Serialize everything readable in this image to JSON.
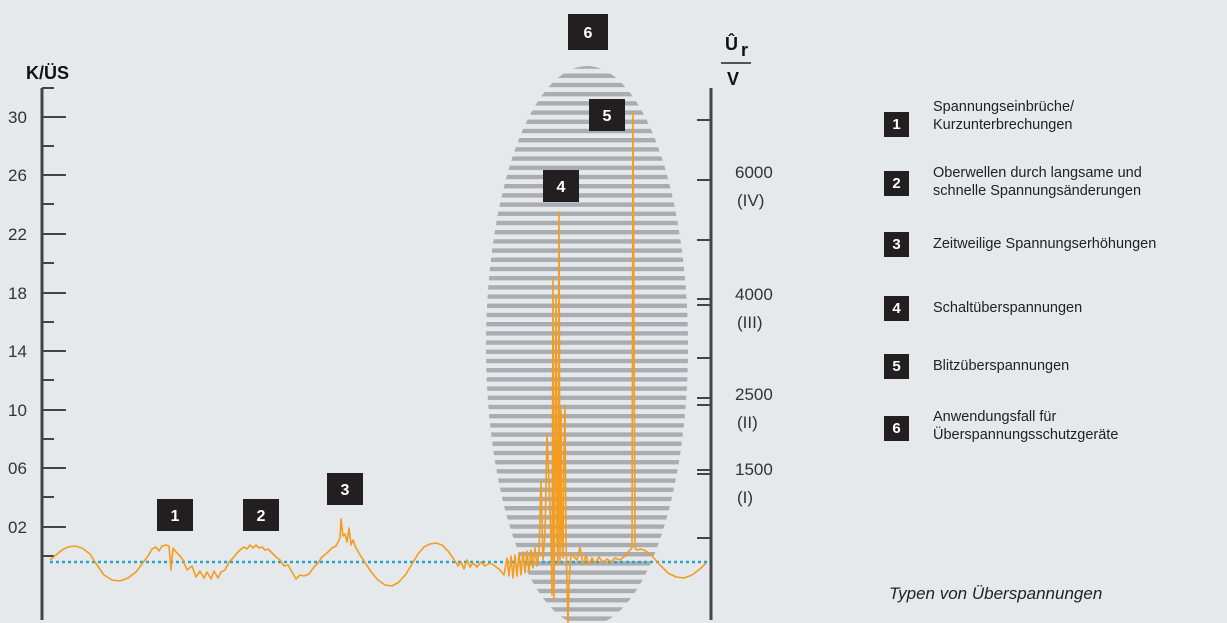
{
  "left_axis": {
    "title": "K/ÜS",
    "tick_labels": [
      "30",
      "26",
      "22",
      "18",
      "14",
      "10",
      "06",
      "02"
    ]
  },
  "right_axis": {
    "title_symbol": "Û",
    "title_subscript": "r",
    "title_unit": "V",
    "tick_labels": [
      {
        "value": "6000",
        "category": "(IV)"
      },
      {
        "value": "4000",
        "category": "(III)"
      },
      {
        "value": "2500",
        "category": "(II)"
      },
      {
        "value": "1500",
        "category": "(I)"
      }
    ]
  },
  "badges": [
    "1",
    "2",
    "3",
    "4",
    "5",
    "6"
  ],
  "legend": [
    {
      "num": "1",
      "text": "Spannungseinbrüche/\nKurzunterbrechungen"
    },
    {
      "num": "2",
      "text": "Oberwellen durch langsame und\nschnelle Spannungsänderungen"
    },
    {
      "num": "3",
      "text": "Zeitweilige Spannungserhöhungen"
    },
    {
      "num": "4",
      "text": "Schaltüberspannungen"
    },
    {
      "num": "5",
      "text": "Blitzüberspannungen"
    },
    {
      "num": "6",
      "text": "Anwendungsfall für\nÜberspannungsschutzgeräte"
    }
  ],
  "caption": "Typen von Überspannungen",
  "colors": {
    "signal": "#f39c1f",
    "baseline": "#2aa4c8",
    "badge": "#231f20",
    "hatch": "#a9acb0",
    "background": "#e5e9ec"
  }
}
